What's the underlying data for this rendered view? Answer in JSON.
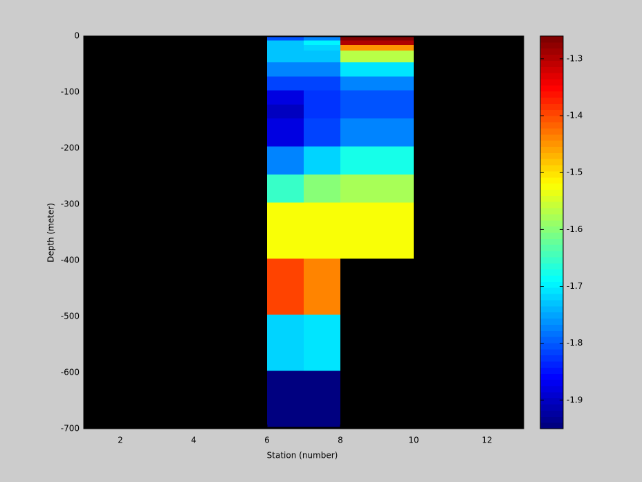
{
  "chart_data": {
    "type": "heatmap",
    "xlabel": "Station (number)",
    "ylabel": "Depth (meter)",
    "xlim": [
      1,
      13
    ],
    "xticks": [
      2,
      4,
      6,
      8,
      10,
      12
    ],
    "ylim": [
      -700,
      0
    ],
    "yticks": [
      -700,
      -600,
      -500,
      -400,
      -300,
      -200,
      -100,
      0
    ],
    "x_edges": [
      6,
      7,
      8,
      10
    ],
    "y_edges": [
      -2,
      -8,
      -16,
      -26,
      -47,
      -72,
      -97,
      -122,
      -147,
      -197,
      -247,
      -297,
      -397,
      -497,
      -597,
      -697
    ],
    "z": [
      [
        -1.8,
        -1.77,
        -1.27
      ],
      [
        -1.73,
        -1.7,
        -1.3
      ],
      [
        -1.73,
        -1.72,
        -1.45
      ],
      [
        -1.73,
        -1.73,
        -1.57
      ],
      [
        -1.77,
        -1.77,
        -1.71
      ],
      [
        -1.82,
        -1.82,
        -1.77
      ],
      [
        -1.88,
        -1.83,
        -1.8
      ],
      [
        -1.9,
        -1.83,
        -1.8
      ],
      [
        -1.88,
        -1.82,
        -1.77
      ],
      [
        -1.77,
        -1.72,
        -1.68
      ],
      [
        -1.65,
        -1.6,
        -1.58
      ],
      [
        -1.52,
        -1.52,
        -1.52
      ],
      [
        -1.39,
        -1.44,
        null
      ],
      [
        -1.72,
        -1.71,
        null
      ],
      [
        -1.95,
        -1.95,
        null
      ]
    ],
    "clim": [
      -1.95,
      -1.26
    ],
    "cticks": [
      -1.9,
      -1.8,
      -1.7,
      -1.6,
      -1.5,
      -1.4,
      -1.3
    ],
    "colormap": "jet",
    "background": "#000000"
  }
}
